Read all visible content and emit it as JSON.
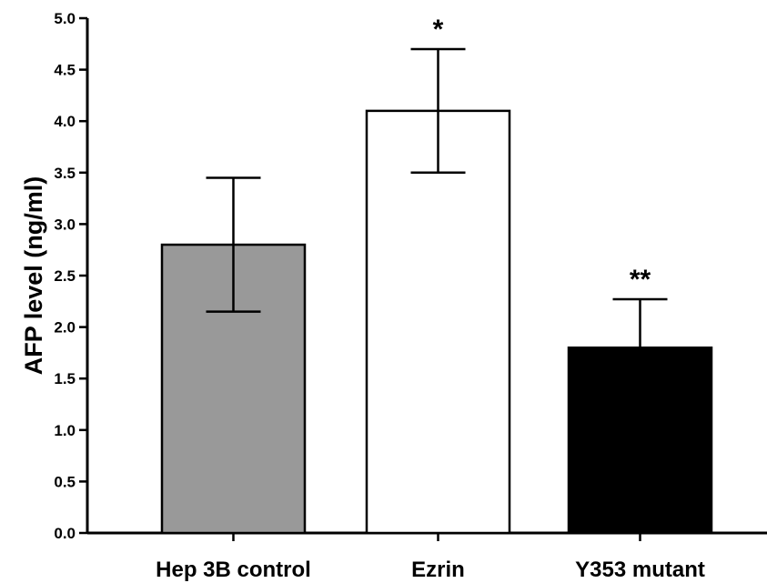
{
  "chart_data": {
    "type": "bar",
    "title": "",
    "xlabel": "",
    "ylabel": "AFP level (ng/ml)",
    "ylim": [
      0,
      5.0
    ],
    "yticks": [
      "0.0",
      "0.5",
      "1.0",
      "1.5",
      "2.0",
      "2.5",
      "3.0",
      "3.5",
      "4.0",
      "4.5",
      "5.0"
    ],
    "categories": [
      "Hep 3B control",
      "Ezrin",
      "Y353 mutant"
    ],
    "values": [
      2.8,
      4.1,
      1.8
    ],
    "errors": [
      0.65,
      0.6,
      0.47
    ],
    "error_style": [
      "both",
      "both",
      "upper"
    ],
    "annotations": [
      "",
      "*",
      "**"
    ],
    "bar_colors": [
      "#999999",
      "#ffffff",
      "#000000"
    ],
    "grid": false,
    "legend": "none"
  }
}
